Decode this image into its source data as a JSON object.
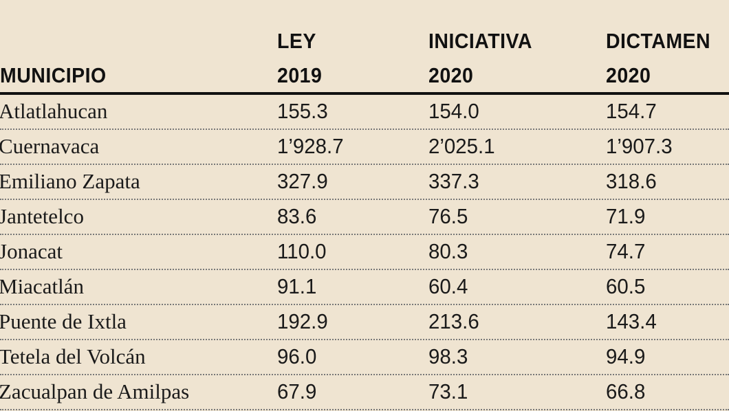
{
  "chart_data": {
    "type": "table",
    "columns": [
      {
        "line1": "",
        "line2": "MUNICIPIO"
      },
      {
        "line1": "LEY",
        "line2": "2019"
      },
      {
        "line1": "INICIATIVA",
        "line2": "2020"
      },
      {
        "line1": "DICTAMEN",
        "line2": "2020"
      }
    ],
    "rows": [
      [
        "Atlatlahucan",
        "155.3",
        "154.0",
        "154.7"
      ],
      [
        "Cuernavaca",
        "1’928.7",
        "2’025.1",
        "1’907.3"
      ],
      [
        "Emiliano Zapata",
        "327.9",
        "337.3",
        "318.6"
      ],
      [
        "Jantetelco",
        "83.6",
        "76.5",
        "71.9"
      ],
      [
        "Jonacat",
        "110.0",
        "80.3",
        "74.7"
      ],
      [
        "Miacatlán",
        "91.1",
        "60.4",
        "60.5"
      ],
      [
        "Puente de Ixtla",
        "192.9",
        "213.6",
        "143.4"
      ],
      [
        "Tetela del Volcán",
        "96.0",
        "98.3",
        "94.9"
      ],
      [
        "Zacualpan de Amilpas",
        "67.9",
        "73.1",
        "66.8"
      ]
    ]
  },
  "colors": {
    "background": "#efe4d1",
    "text": "#111111"
  }
}
